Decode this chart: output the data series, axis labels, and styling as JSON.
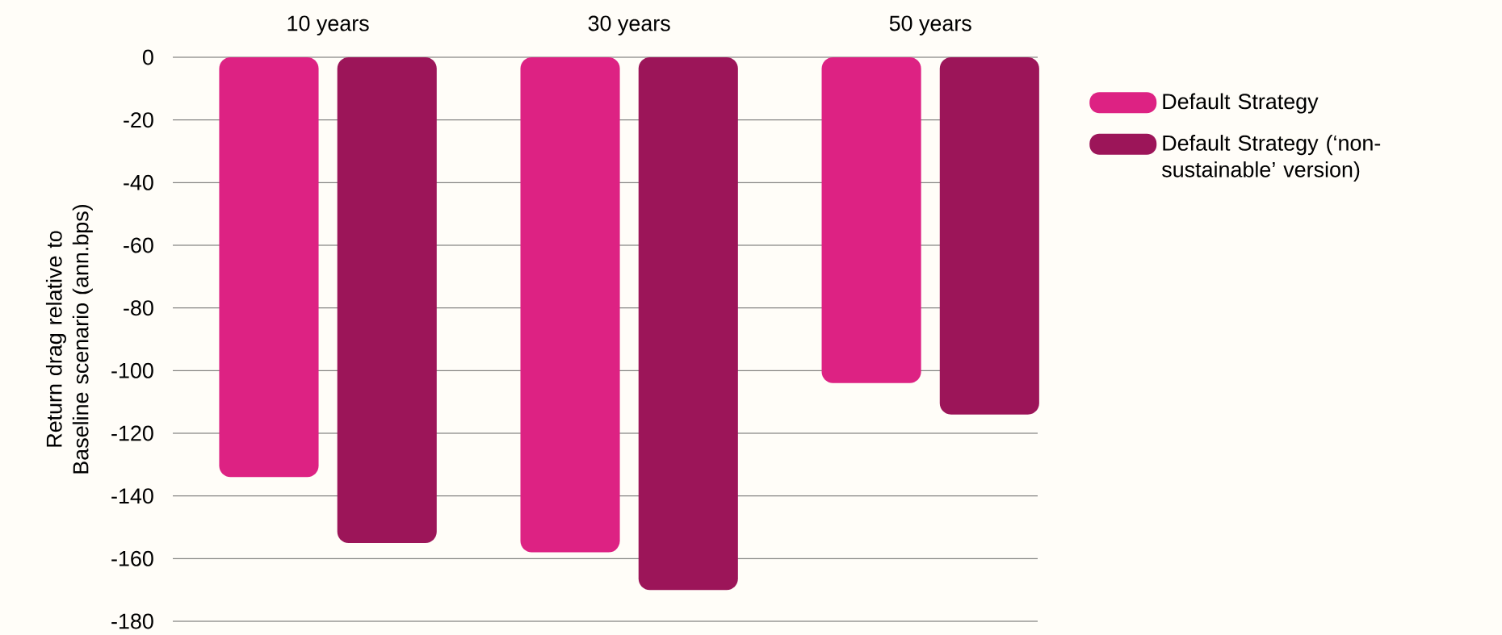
{
  "chart_data": {
    "type": "bar",
    "ylabel": "Return drag relative to Baseline scenario (ann.bps)",
    "categories": [
      "10 years",
      "30 years",
      "50 years"
    ],
    "series": [
      {
        "name": "Default Strategy",
        "color": "#dd2283",
        "values": [
          -134,
          -158,
          -104
        ]
      },
      {
        "name": "Default Strategy (‘non-sustainable’ version)",
        "color": "#9c1559",
        "values": [
          -155,
          -170,
          -114
        ]
      }
    ],
    "ylim": [
      -180,
      0
    ],
    "yticks": [
      -180,
      -160,
      -140,
      -120,
      -100,
      -80,
      -60,
      -40,
      -20,
      0
    ],
    "grid": "y",
    "legend": "right"
  }
}
